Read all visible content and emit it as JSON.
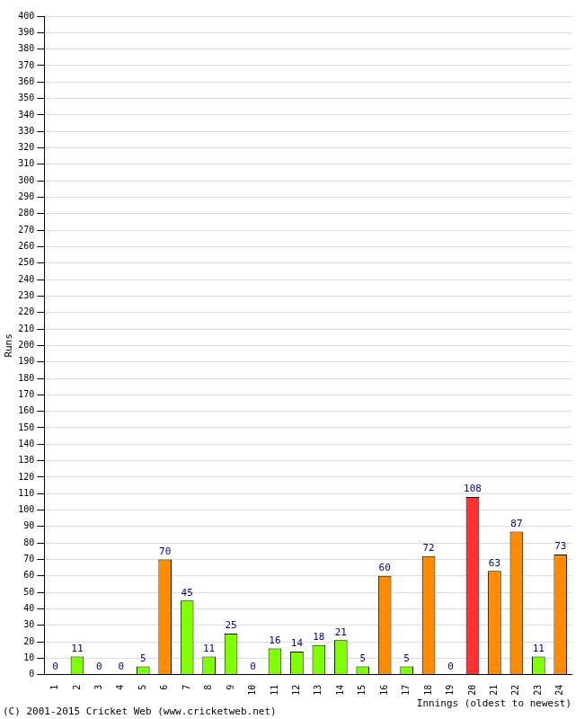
{
  "chart_data": {
    "type": "bar",
    "x_label": "Innings (oldest to newest)",
    "y_label": "Runs",
    "annotations": [
      "(C) 2001-2015 Cricket Web (www.cricketweb.net)"
    ],
    "categories": [
      "1",
      "2",
      "3",
      "4",
      "5",
      "6",
      "7",
      "8",
      "9",
      "10",
      "11",
      "12",
      "13",
      "14",
      "15",
      "16",
      "17",
      "18",
      "19",
      "20",
      "21",
      "22",
      "23",
      "24"
    ],
    "values": [
      0,
      11,
      0,
      0,
      5,
      70,
      45,
      11,
      25,
      0,
      16,
      14,
      18,
      21,
      5,
      60,
      5,
      72,
      0,
      108,
      63,
      87,
      11,
      73
    ],
    "colors": [
      "#80ff00",
      "#80ff00",
      "#80ff00",
      "#80ff00",
      "#80ff00",
      "#ff8c00",
      "#80ff00",
      "#80ff00",
      "#80ff00",
      "#80ff00",
      "#80ff00",
      "#80ff00",
      "#80ff00",
      "#80ff00",
      "#80ff00",
      "#ff8c00",
      "#80ff00",
      "#ff8c00",
      "#80ff00",
      "#ff3333",
      "#ff8c00",
      "#ff8c00",
      "#80ff00",
      "#ff8c00"
    ],
    "ylim": [
      0,
      400
    ],
    "yticks": [
      0,
      10,
      20,
      30,
      40,
      50,
      60,
      70,
      80,
      90,
      100,
      110,
      120,
      130,
      140,
      150,
      160,
      170,
      180,
      190,
      200,
      210,
      220,
      230,
      240,
      250,
      260,
      270,
      280,
      290,
      300,
      310,
      320,
      330,
      340,
      350,
      360,
      370,
      380,
      390,
      400
    ],
    "grid": true,
    "data_labels": true
  }
}
